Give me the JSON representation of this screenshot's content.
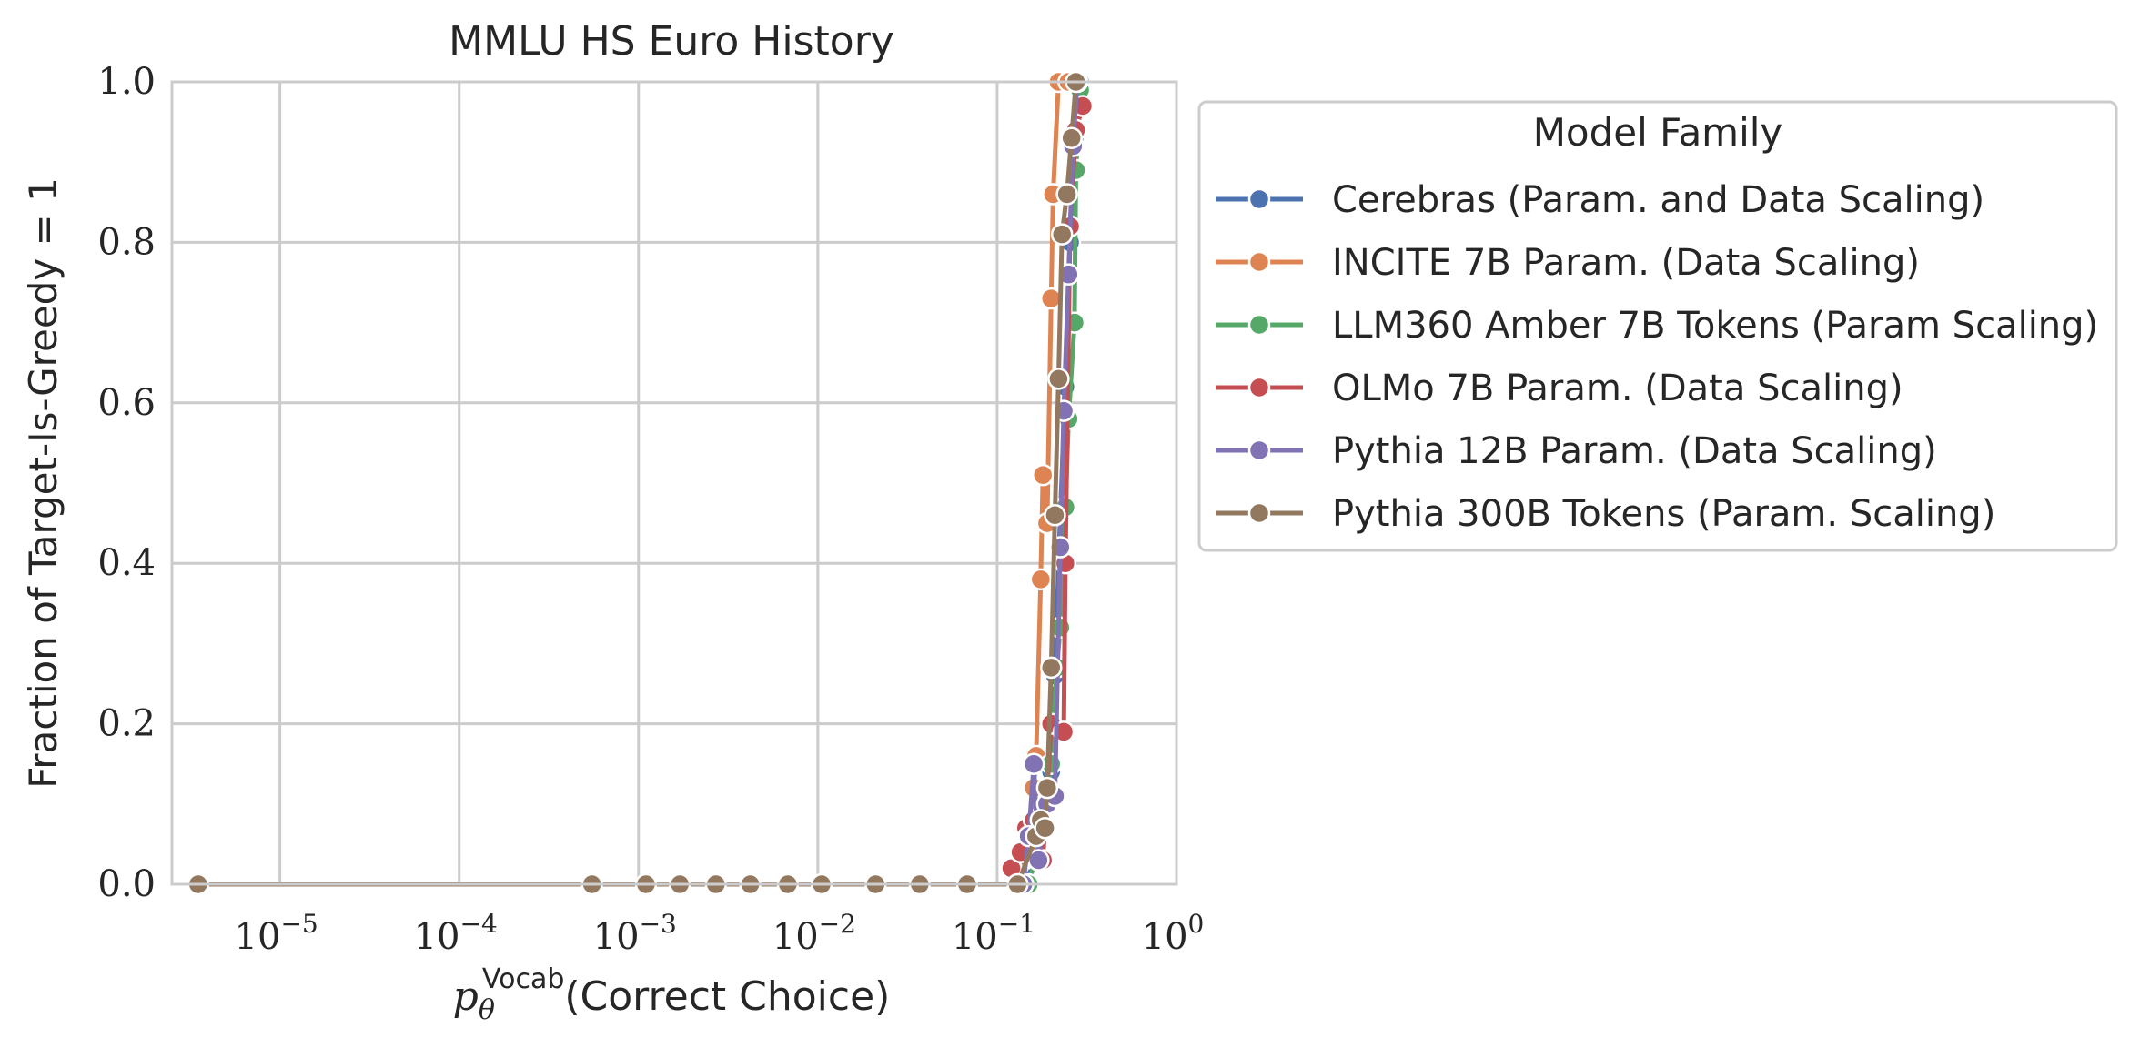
{
  "chart_data": {
    "type": "line",
    "title": "MMLU HS Euro History",
    "xlabel": "(Correct Choice)",
    "xlabel_math": {
      "base": "p",
      "sub": "θ",
      "sup": "Vocab"
    },
    "ylabel": "Fraction of Target-Is-Greedy = 1",
    "x_scale": "log",
    "xlim": [
      2.5e-06,
      1
    ],
    "ylim": [
      0,
      1
    ],
    "x_ticks": [
      {
        "value": 1e-05,
        "base": "10",
        "exp": "−5"
      },
      {
        "value": 0.0001,
        "base": "10",
        "exp": "−4"
      },
      {
        "value": 0.001,
        "base": "10",
        "exp": "−3"
      },
      {
        "value": 0.01,
        "base": "10",
        "exp": "−2"
      },
      {
        "value": 0.1,
        "base": "10",
        "exp": "−1"
      },
      {
        "value": 1,
        "base": "10",
        "exp": "0"
      }
    ],
    "y_ticks": [
      {
        "value": 0.0,
        "label": "0.0"
      },
      {
        "value": 0.2,
        "label": "0.2"
      },
      {
        "value": 0.4,
        "label": "0.4"
      },
      {
        "value": 0.6,
        "label": "0.6"
      },
      {
        "value": 0.8,
        "label": "0.8"
      },
      {
        "value": 1.0,
        "label": "1.0"
      }
    ],
    "grid": true,
    "legend": {
      "title": "Model Family",
      "placement": "outside-right-top"
    },
    "series": [
      {
        "name": "Cerebras (Param. and Data Scaling)",
        "color": "#4c72b0",
        "points": [
          [
            0.14,
            0.0
          ],
          [
            0.165,
            0.03
          ],
          [
            0.18,
            0.08
          ],
          [
            0.2,
            0.14
          ],
          [
            0.21,
            0.26
          ],
          [
            0.225,
            0.46
          ],
          [
            0.24,
            0.62
          ],
          [
            0.255,
            0.8
          ],
          [
            0.27,
            0.93
          ],
          [
            0.29,
            1.0
          ]
        ]
      },
      {
        "name": "INCITE 7B Param. (Data Scaling)",
        "color": "#dd8452",
        "points": [
          [
            0.13,
            0.0
          ],
          [
            0.15,
            0.05
          ],
          [
            0.16,
            0.12
          ],
          [
            0.165,
            0.16
          ],
          [
            0.175,
            0.38
          ],
          [
            0.18,
            0.51
          ],
          [
            0.19,
            0.45
          ],
          [
            0.2,
            0.73
          ],
          [
            0.205,
            0.86
          ],
          [
            0.22,
            1.0
          ],
          [
            0.25,
            1.0
          ]
        ]
      },
      {
        "name": "LLM360 Amber 7B Tokens (Param Scaling)",
        "color": "#55a868",
        "points": [
          [
            0.15,
            0.0
          ],
          [
            0.18,
            0.07
          ],
          [
            0.2,
            0.15
          ],
          [
            0.215,
            0.27
          ],
          [
            0.225,
            0.32
          ],
          [
            0.24,
            0.47
          ],
          [
            0.25,
            0.58
          ],
          [
            0.27,
            0.7
          ],
          [
            0.275,
            0.89
          ],
          [
            0.29,
            0.99
          ]
        ]
      },
      {
        "name": "OLMo 7B Param. (Data Scaling)",
        "color": "#c44e52",
        "points": [
          [
            0.12,
            0.02
          ],
          [
            0.135,
            0.04
          ],
          [
            0.145,
            0.07
          ],
          [
            0.16,
            0.08
          ],
          [
            0.18,
            0.03
          ],
          [
            0.2,
            0.2
          ],
          [
            0.235,
            0.19
          ],
          [
            0.24,
            0.4
          ],
          [
            0.255,
            0.82
          ],
          [
            0.275,
            0.94
          ],
          [
            0.3,
            0.97
          ]
        ]
      },
      {
        "name": "Pythia 12B Param. (Data Scaling)",
        "color": "#8172b3",
        "points": [
          [
            0.14,
            0.0
          ],
          [
            0.15,
            0.06
          ],
          [
            0.16,
            0.15
          ],
          [
            0.17,
            0.03
          ],
          [
            0.19,
            0.1
          ],
          [
            0.21,
            0.11
          ],
          [
            0.225,
            0.42
          ],
          [
            0.235,
            0.59
          ],
          [
            0.25,
            0.76
          ],
          [
            0.265,
            0.92
          ],
          [
            0.28,
            1.0
          ]
        ]
      },
      {
        "name": "Pythia 300B Tokens (Param. Scaling)",
        "color": "#937860",
        "points": [
          [
            3.5e-06,
            0.0
          ],
          [
            0.00055,
            0.0
          ],
          [
            0.0011,
            0.0
          ],
          [
            0.0017,
            0.0
          ],
          [
            0.0027,
            0.0
          ],
          [
            0.0042,
            0.0
          ],
          [
            0.0068,
            0.0
          ],
          [
            0.0105,
            0.0
          ],
          [
            0.021,
            0.0
          ],
          [
            0.037,
            0.0
          ],
          [
            0.068,
            0.0
          ],
          [
            0.13,
            0.0
          ],
          [
            0.165,
            0.06
          ],
          [
            0.175,
            0.08
          ],
          [
            0.185,
            0.07
          ],
          [
            0.19,
            0.12
          ],
          [
            0.2,
            0.27
          ],
          [
            0.21,
            0.46
          ],
          [
            0.22,
            0.63
          ],
          [
            0.23,
            0.81
          ],
          [
            0.245,
            0.86
          ],
          [
            0.26,
            0.93
          ],
          [
            0.275,
            1.0
          ]
        ]
      }
    ]
  }
}
